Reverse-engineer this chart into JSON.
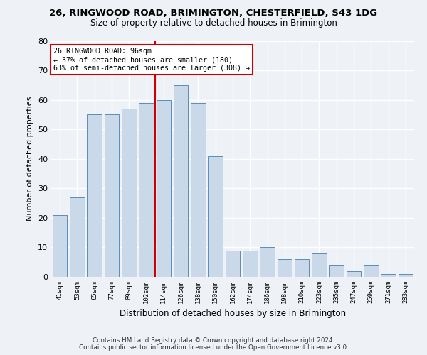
{
  "title": "26, RINGWOOD ROAD, BRIMINGTON, CHESTERFIELD, S43 1DG",
  "subtitle": "Size of property relative to detached houses in Brimington",
  "xlabel": "Distribution of detached houses by size in Brimington",
  "ylabel": "Number of detached properties",
  "categories": [
    "41sqm",
    "53sqm",
    "65sqm",
    "77sqm",
    "89sqm",
    "102sqm",
    "114sqm",
    "126sqm",
    "138sqm",
    "150sqm",
    "162sqm",
    "174sqm",
    "186sqm",
    "198sqm",
    "210sqm",
    "223sqm",
    "235sqm",
    "247sqm",
    "259sqm",
    "271sqm",
    "283sqm"
  ],
  "values": [
    21,
    27,
    55,
    55,
    57,
    59,
    60,
    65,
    59,
    41,
    9,
    9,
    10,
    6,
    6,
    8,
    4,
    2,
    4,
    1,
    1
  ],
  "bar_color": "#c9d9ea",
  "bar_edge_color": "#5b8db8",
  "property_line_x": 5.5,
  "annotation_title": "26 RINGWOOD ROAD: 96sqm",
  "annotation_line1": "← 37% of detached houses are smaller (180)",
  "annotation_line2": "63% of semi-detached houses are larger (308) →",
  "annotation_box_color": "#ffffff",
  "annotation_box_edge": "#cc0000",
  "vline_color": "#cc0000",
  "ylim": [
    0,
    80
  ],
  "yticks": [
    0,
    10,
    20,
    30,
    40,
    50,
    60,
    70,
    80
  ],
  "footer1": "Contains HM Land Registry data © Crown copyright and database right 2024.",
  "footer2": "Contains public sector information licensed under the Open Government Licence v3.0.",
  "bg_color": "#eef2f7",
  "grid_color": "#ffffff"
}
